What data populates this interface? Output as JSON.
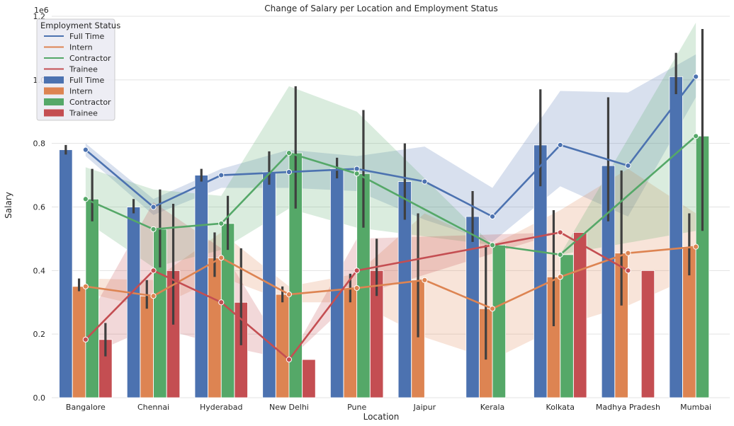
{
  "chart_data": {
    "type": "bar",
    "title": "Change of Salary per Location and Employment Status",
    "xlabel": "Location",
    "ylabel": "Salary",
    "y_offset_label": "1e6",
    "ylim": [
      0,
      1.2
    ],
    "yticks": [
      0.0,
      0.2,
      0.4,
      0.6,
      0.8,
      1.0,
      1.2
    ],
    "ytick_labels": [
      "0.0",
      "0.2",
      "0.4",
      "0.6",
      "0.8",
      "1.0",
      "1.2"
    ],
    "grid": true,
    "legend": {
      "title": "Employment Status",
      "placement": "top-left",
      "line_entries": [
        "Full Time",
        "Intern",
        "Contractor",
        "Trainee"
      ],
      "bar_entries": [
        "Full Time",
        "Intern",
        "Contractor",
        "Trainee"
      ]
    },
    "categories": [
      "Bangalore",
      "Chennai",
      "Hyderabad",
      "New Delhi",
      "Pune",
      "Jaipur",
      "Kerala",
      "Kolkata",
      "Madhya Pradesh",
      "Mumbai"
    ],
    "series": [
      {
        "name": "Full Time",
        "bar_color": "#4c72b0",
        "line_color": "#4c72b0",
        "values": [
          0.78,
          0.6,
          0.7,
          0.71,
          0.72,
          0.68,
          0.57,
          0.795,
          0.73,
          1.01
        ],
        "err_low": [
          0.765,
          0.58,
          0.68,
          0.67,
          0.69,
          0.56,
          0.49,
          0.665,
          0.555,
          0.955
        ],
        "err_high": [
          0.795,
          0.625,
          0.72,
          0.775,
          0.755,
          0.8,
          0.65,
          0.97,
          0.945,
          1.085
        ],
        "line_values": [
          0.78,
          0.6,
          0.7,
          0.71,
          0.72,
          0.68,
          0.57,
          0.795,
          0.73,
          1.01
        ],
        "ci_low": [
          0.76,
          0.575,
          0.66,
          0.66,
          0.65,
          0.56,
          0.49,
          0.665,
          0.57,
          0.945
        ],
        "ci_high": [
          0.8,
          0.625,
          0.72,
          0.78,
          0.76,
          0.79,
          0.66,
          0.965,
          0.96,
          1.08
        ]
      },
      {
        "name": "Intern",
        "bar_color": "#dd8452",
        "line_color": "#dd8452",
        "values": [
          0.35,
          0.32,
          0.44,
          0.325,
          0.345,
          0.37,
          0.28,
          0.38,
          0.455,
          0.475
        ],
        "err_low": [
          0.335,
          0.28,
          0.38,
          0.3,
          0.3,
          0.19,
          0.12,
          0.225,
          0.29,
          0.385
        ],
        "err_high": [
          0.375,
          0.37,
          0.52,
          0.35,
          0.39,
          0.58,
          0.48,
          0.59,
          0.715,
          0.58
        ],
        "line_values": [
          0.35,
          0.32,
          0.44,
          0.325,
          0.345,
          0.37,
          0.28,
          0.38,
          0.455,
          0.475
        ],
        "ci_low": [
          0.33,
          0.28,
          0.38,
          0.3,
          0.3,
          0.19,
          0.12,
          0.225,
          0.29,
          0.385
        ],
        "ci_high": [
          0.375,
          0.37,
          0.52,
          0.35,
          0.39,
          0.58,
          0.48,
          0.59,
          0.72,
          0.58
        ]
      },
      {
        "name": "Contractor",
        "bar_color": "#55a868",
        "line_color": "#55a868",
        "values": [
          0.625,
          0.53,
          0.548,
          0.77,
          0.705,
          null,
          0.48,
          0.45,
          null,
          0.823
        ],
        "err_low": [
          0.555,
          0.41,
          0.465,
          0.595,
          0.535,
          null,
          null,
          null,
          null,
          0.525
        ],
        "err_high": [
          0.72,
          0.655,
          0.635,
          0.98,
          0.905,
          null,
          null,
          null,
          null,
          1.16
        ],
        "line_values": [
          0.625,
          0.53,
          0.548,
          0.77,
          0.705,
          null,
          0.48,
          0.45,
          null,
          0.823
        ],
        "ci_low": [
          0.555,
          0.41,
          0.465,
          0.595,
          0.535,
          null,
          0.48,
          0.45,
          null,
          0.525
        ],
        "ci_high": [
          0.725,
          0.655,
          0.635,
          0.98,
          0.9,
          null,
          0.48,
          0.45,
          null,
          1.18
        ]
      },
      {
        "name": "Trainee",
        "bar_color": "#c44e52",
        "line_color": "#c44e52",
        "values": [
          0.183,
          0.4,
          0.3,
          0.12,
          0.4,
          null,
          null,
          0.52,
          0.4,
          null
        ],
        "err_low": [
          0.13,
          0.23,
          0.165,
          null,
          0.32,
          null,
          null,
          null,
          null,
          null
        ],
        "err_high": [
          0.235,
          0.61,
          0.47,
          null,
          0.5,
          null,
          null,
          null,
          null,
          null
        ],
        "line_values": [
          0.183,
          0.4,
          0.3,
          0.12,
          0.4,
          null,
          null,
          0.52,
          0.4,
          null
        ],
        "ci_low": [
          0.13,
          0.225,
          0.165,
          0.12,
          0.32,
          null,
          null,
          0.52,
          0.4,
          null
        ],
        "ci_high": [
          0.235,
          0.615,
          0.47,
          0.12,
          0.5,
          null,
          null,
          0.52,
          0.4,
          null
        ]
      }
    ]
  }
}
